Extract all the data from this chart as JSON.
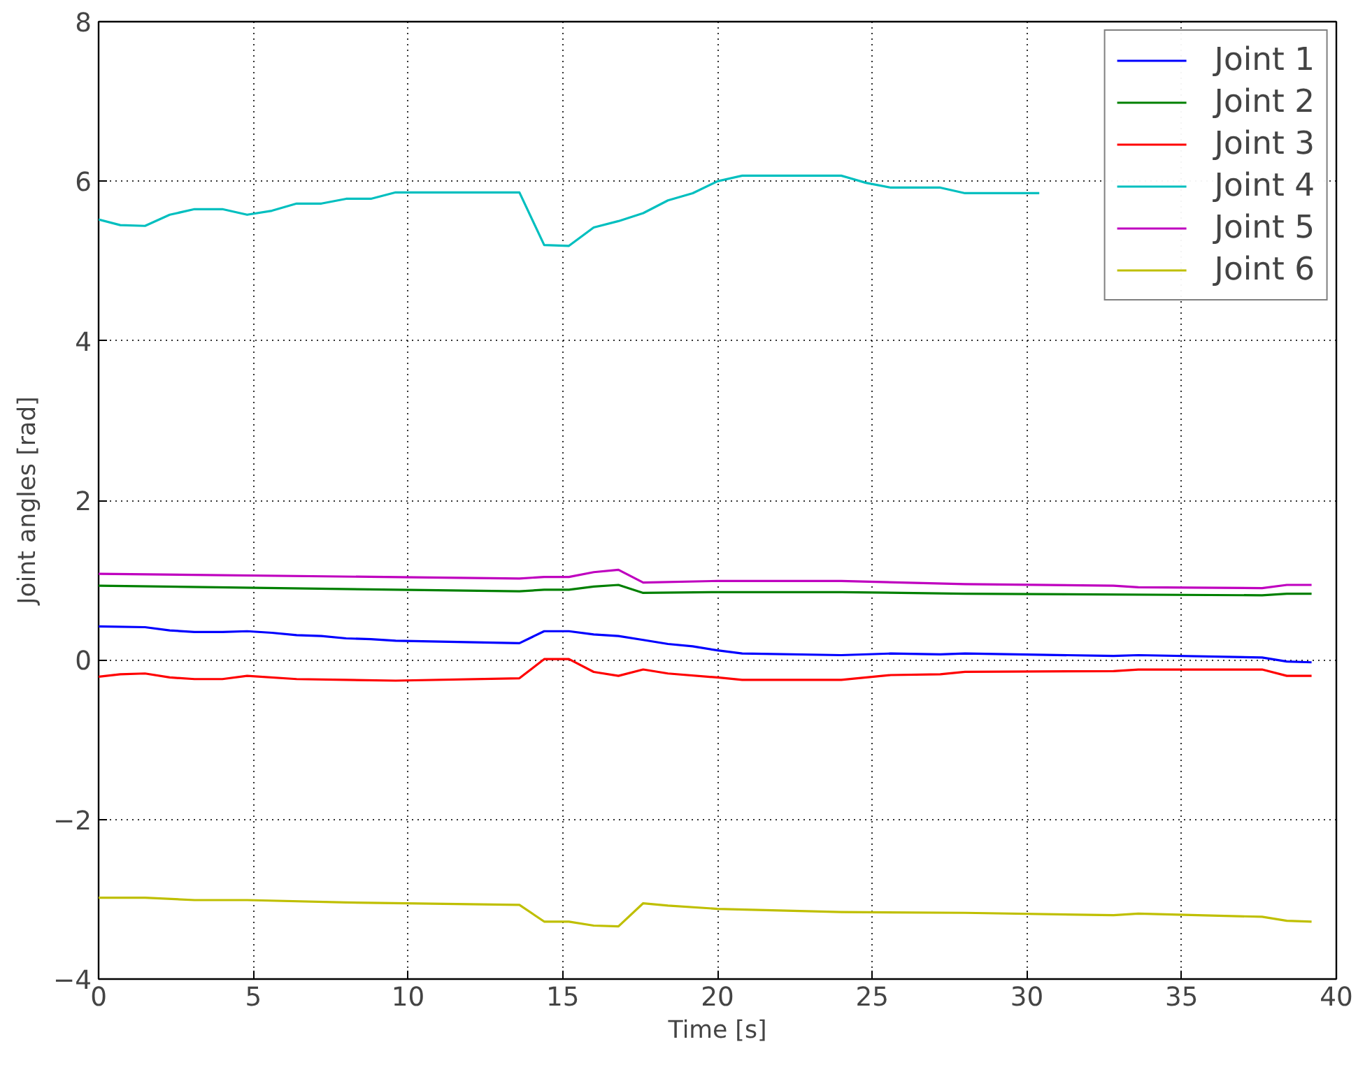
{
  "chart_data": {
    "type": "line",
    "xlabel": "Time [s]",
    "ylabel": "Joint angles [rad]",
    "xlim": [
      0,
      40
    ],
    "ylim": [
      -4,
      8
    ],
    "xticks": [
      0,
      5,
      10,
      15,
      20,
      25,
      30,
      35,
      40
    ],
    "yticks": [
      {
        "value": -4,
        "label": "−4"
      },
      {
        "value": -2,
        "label": "−2"
      },
      0,
      2,
      4,
      6,
      8
    ],
    "grid": true,
    "legend": "top right",
    "line_style": "solid",
    "marker": "none",
    "series": [
      {
        "name": "Joint 1",
        "color": "#0000ff",
        "x": [
          0,
          1.5,
          2.3,
          3.1,
          4,
          4.8,
          5.6,
          6.4,
          7.2,
          8,
          8.8,
          9.6,
          13.6,
          14.4,
          15.2,
          16,
          16.8,
          17.6,
          18.4,
          19.2,
          20,
          20.8,
          24,
          25.6,
          27.2,
          28,
          32.8,
          33.6,
          37.6,
          38.4,
          39.2
        ],
        "values": [
          0.42,
          0.41,
          0.37,
          0.35,
          0.35,
          0.36,
          0.34,
          0.31,
          0.3,
          0.27,
          0.26,
          0.24,
          0.21,
          0.36,
          0.36,
          0.32,
          0.3,
          0.25,
          0.2,
          0.17,
          0.12,
          0.08,
          0.06,
          0.08,
          0.07,
          0.08,
          0.05,
          0.06,
          0.03,
          -0.02,
          -0.03
        ]
      },
      {
        "name": "Joint 2",
        "color": "#008000",
        "x": [
          0,
          13.6,
          14.4,
          15.2,
          16,
          16.8,
          17.6,
          20,
          24,
          28,
          37.6,
          38.4,
          39.2
        ],
        "values": [
          0.93,
          0.86,
          0.88,
          0.88,
          0.92,
          0.94,
          0.84,
          0.85,
          0.85,
          0.83,
          0.81,
          0.83,
          0.83
        ]
      },
      {
        "name": "Joint 3",
        "color": "#ff0000",
        "x": [
          0,
          0.7,
          1.5,
          2.3,
          3.1,
          4,
          4.8,
          6.4,
          8,
          9.6,
          13.6,
          14.4,
          15.2,
          16,
          16.8,
          17.6,
          18.4,
          20,
          20.8,
          24,
          25.6,
          27.2,
          28,
          32.8,
          33.6,
          37.6,
          38.4,
          39.2
        ],
        "values": [
          -0.21,
          -0.18,
          -0.17,
          -0.22,
          -0.24,
          -0.24,
          -0.2,
          -0.24,
          -0.25,
          -0.26,
          -0.23,
          0.01,
          0.01,
          -0.15,
          -0.2,
          -0.12,
          -0.17,
          -0.22,
          -0.25,
          -0.25,
          -0.19,
          -0.18,
          -0.15,
          -0.14,
          -0.12,
          -0.12,
          -0.2,
          -0.2
        ]
      },
      {
        "name": "Joint 4",
        "color": "#00bfbf",
        "x": [
          0,
          0.7,
          1.5,
          2.3,
          3.1,
          4,
          4.8,
          5.6,
          6.4,
          7.2,
          8,
          8.8,
          9.6,
          10.4,
          13.6,
          14.4,
          15.2,
          16,
          16.8,
          17.6,
          18.4,
          19.2,
          20,
          20.8,
          24,
          24.8,
          25.6,
          27.2,
          28,
          30.4
        ],
        "values": [
          5.52,
          5.45,
          5.44,
          5.58,
          5.65,
          5.65,
          5.58,
          5.63,
          5.72,
          5.72,
          5.78,
          5.78,
          5.86,
          5.86,
          5.86,
          5.2,
          5.19,
          5.42,
          5.5,
          5.6,
          5.76,
          5.85,
          6.0,
          6.07,
          6.07,
          5.98,
          5.92,
          5.92,
          5.85,
          5.85
        ]
      },
      {
        "name": "Joint 5",
        "color": "#bf00bf",
        "x": [
          0,
          13.6,
          14.4,
          15.2,
          16,
          16.8,
          17.6,
          20,
          24,
          28,
          32.8,
          33.6,
          37.6,
          38.4,
          39.2
        ],
        "values": [
          1.08,
          1.02,
          1.04,
          1.04,
          1.1,
          1.13,
          0.97,
          0.99,
          0.99,
          0.95,
          0.93,
          0.91,
          0.9,
          0.94,
          0.94
        ]
      },
      {
        "name": "Joint 6",
        "color": "#bfbf00",
        "x": [
          0,
          1.5,
          3.1,
          4.8,
          8,
          13.6,
          14.4,
          15.2,
          16,
          16.8,
          17.6,
          18.4,
          20,
          24,
          28,
          32.8,
          33.6,
          37.6,
          38.4,
          39.2
        ],
        "values": [
          -2.98,
          -2.98,
          -3.01,
          -3.01,
          -3.04,
          -3.07,
          -3.28,
          -3.28,
          -3.33,
          -3.34,
          -3.05,
          -3.08,
          -3.12,
          -3.16,
          -3.17,
          -3.2,
          -3.18,
          -3.22,
          -3.27,
          -3.28
        ]
      }
    ]
  }
}
